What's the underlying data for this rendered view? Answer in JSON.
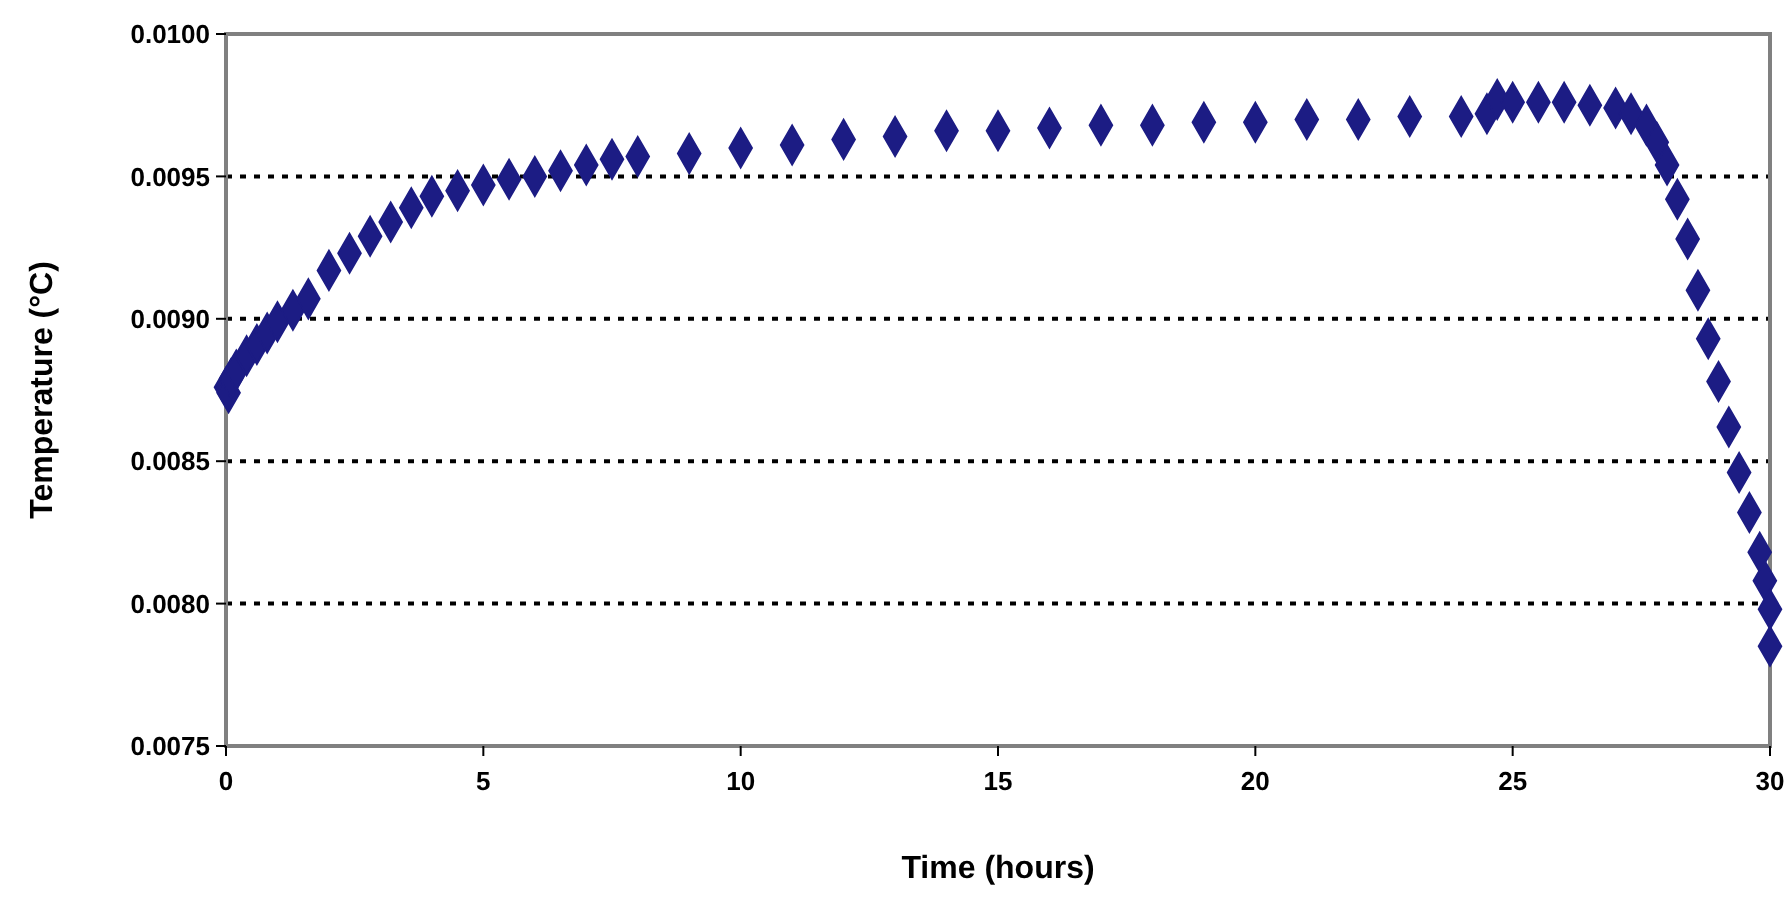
{
  "chart_data": {
    "type": "scatter",
    "xlabel": "Time (hours)",
    "ylabel": "Temperature (°C)",
    "marker": "diamond",
    "grid": "y",
    "xlim": [
      0,
      30
    ],
    "xticks": [
      0,
      5,
      10,
      15,
      20,
      25,
      30
    ],
    "ylim": [
      0.0075,
      0.01
    ],
    "yticks": [
      {
        "value": 0.0075,
        "label": "0.0075"
      },
      {
        "value": 0.008,
        "label": "0.0080"
      },
      {
        "value": 0.0085,
        "label": "0.0085"
      },
      {
        "value": 0.009,
        "label": "0.0090"
      },
      {
        "value": 0.0095,
        "label": "0.0095"
      },
      {
        "value": 0.01,
        "label": "0.0100"
      }
    ],
    "series": [
      {
        "color": "#1c1c84",
        "x": [
          0,
          0.05,
          0.1,
          0.2,
          0.4,
          0.6,
          0.8,
          1,
          1.3,
          1.6,
          2,
          2.4,
          2.8,
          3.2,
          3.6,
          4,
          4.5,
          5,
          5.5,
          6,
          6.5,
          7,
          7.5,
          8,
          9,
          10,
          11,
          12,
          13,
          14,
          15,
          16,
          17,
          18,
          19,
          20,
          21,
          22,
          23,
          24,
          24.5,
          24.7,
          25,
          25.5,
          26,
          26.5,
          27,
          27.3,
          27.6,
          27.8,
          28,
          28.2,
          28.4,
          28.6,
          28.8,
          29,
          29.2,
          29.4,
          29.6,
          29.8,
          29.9,
          30,
          30
        ],
        "values": [
          0.00876,
          0.00874,
          0.00879,
          0.00882,
          0.00887,
          0.00891,
          0.00895,
          0.00899,
          0.00903,
          0.00907,
          0.00917,
          0.00923,
          0.00929,
          0.00934,
          0.00939,
          0.00943,
          0.00945,
          0.00947,
          0.00949,
          0.0095,
          0.00952,
          0.00954,
          0.00956,
          0.00957,
          0.00958,
          0.0096,
          0.00961,
          0.00963,
          0.00964,
          0.00966,
          0.00966,
          0.00967,
          0.00968,
          0.00968,
          0.00969,
          0.00969,
          0.0097,
          0.0097,
          0.00971,
          0.00971,
          0.00972,
          0.00977,
          0.00976,
          0.00976,
          0.00976,
          0.00975,
          0.00974,
          0.00972,
          0.00968,
          0.00962,
          0.00954,
          0.00942,
          0.00928,
          0.0091,
          0.00893,
          0.00878,
          0.00862,
          0.00846,
          0.00832,
          0.00818,
          0.00808,
          0.00798,
          0.00785
        ]
      }
    ]
  }
}
